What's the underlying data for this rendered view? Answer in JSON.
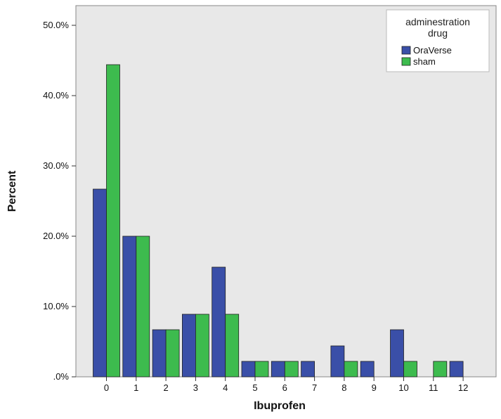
{
  "chart_data": {
    "type": "bar",
    "xlabel": "Ibuprofen",
    "ylabel": "Percent",
    "categories": [
      "0",
      "1",
      "2",
      "3",
      "4",
      "5",
      "6",
      "7",
      "8",
      "9",
      "10",
      "11",
      "12"
    ],
    "series": [
      {
        "name": "OraVerse",
        "color": "#3a4fa8",
        "values": [
          26.7,
          20.0,
          6.7,
          8.9,
          15.6,
          2.2,
          2.2,
          2.2,
          4.4,
          2.2,
          6.7,
          0,
          2.2
        ]
      },
      {
        "name": "sham",
        "color": "#3dbb4e",
        "values": [
          44.4,
          20.0,
          6.7,
          8.9,
          8.9,
          2.2,
          2.2,
          0,
          2.2,
          0,
          2.2,
          2.2,
          0
        ]
      }
    ],
    "ylim": [
      0,
      50
    ],
    "yticks": [
      ".0%",
      "10.0%",
      "20.0%",
      "30.0%",
      "40.0%",
      "50.0%"
    ],
    "legend": {
      "title_line1": "adminestration",
      "title_line2": "drug",
      "placement": "top-right"
    },
    "plot_background": "#e8e8e8",
    "grid": false
  }
}
